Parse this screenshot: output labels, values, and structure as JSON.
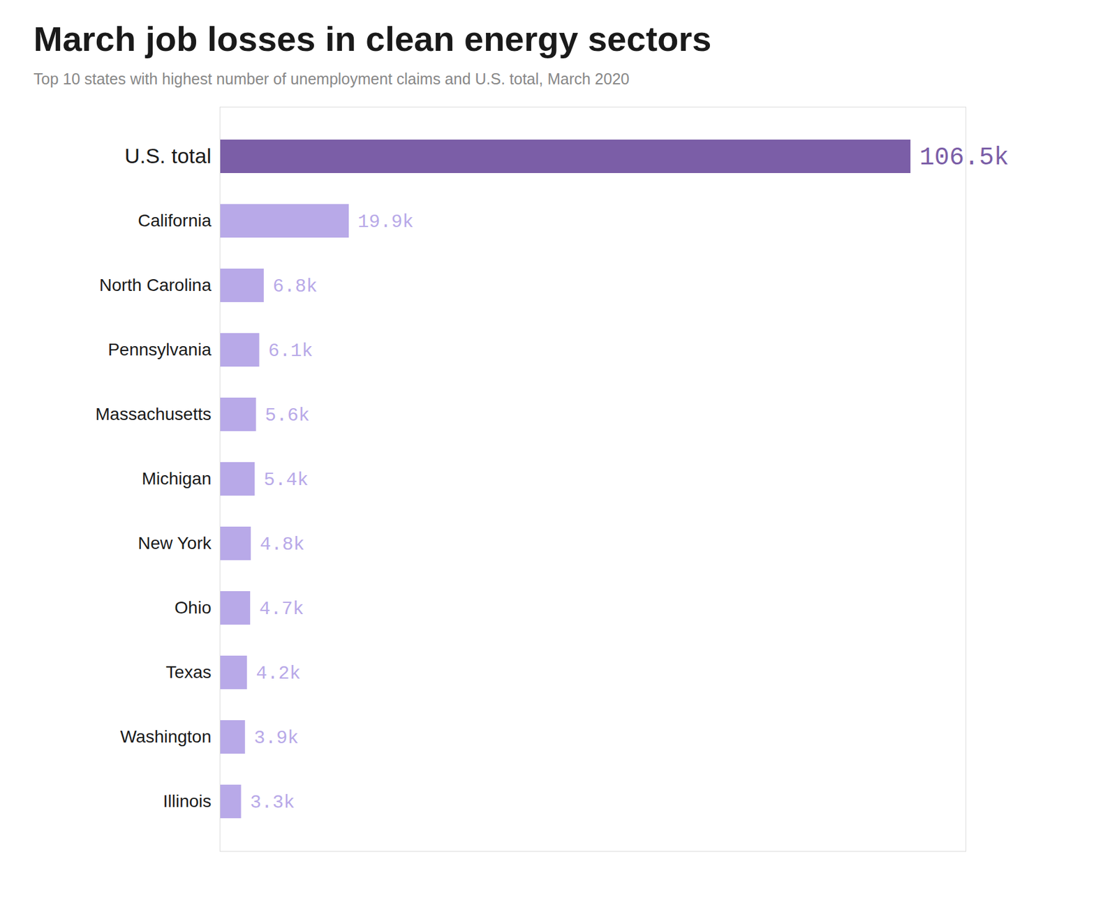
{
  "chart_data": {
    "type": "bar",
    "orientation": "horizontal",
    "title": "March job losses in clean energy sectors",
    "subtitle": "Top 10 states with highest number of unemployment claims and U.S. total, March 2020",
    "categories": [
      "U.S. total",
      "California",
      "North Carolina",
      "Pennsylvania",
      "Massachusetts",
      "Michigan",
      "New York",
      "Ohio",
      "Texas",
      "Washington",
      "Illinois"
    ],
    "values": [
      106500,
      19900,
      6800,
      6100,
      5600,
      5400,
      4800,
      4700,
      4200,
      3900,
      3300
    ],
    "value_labels": [
      "106.5k",
      "19.9k",
      "6.8k",
      "6.1k",
      "5.6k",
      "5.4k",
      "4.8k",
      "4.7k",
      "4.2k",
      "3.9k",
      "3.3k"
    ],
    "colors": [
      "#7B5EA7",
      "#B8A9E8",
      "#B8A9E8",
      "#B8A9E8",
      "#B8A9E8",
      "#B8A9E8",
      "#B8A9E8",
      "#B8A9E8",
      "#B8A9E8",
      "#B8A9E8",
      "#B8A9E8"
    ],
    "xlim": [
      0,
      115000
    ],
    "data_labels": true,
    "tick_labels": "y",
    "grid": false
  }
}
